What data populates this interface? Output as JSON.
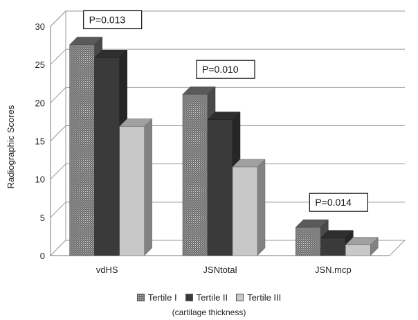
{
  "chart_data": {
    "type": "bar",
    "title": "",
    "xlabel": "",
    "ylabel": "Radiographic Scores",
    "ylim": [
      0,
      30
    ],
    "yticks": [
      0,
      5,
      10,
      15,
      20,
      25,
      30
    ],
    "grid": true,
    "legend_position": "bottom",
    "categories": [
      "vdHS",
      "JSNtotal",
      "JSN.mcp"
    ],
    "series": [
      {
        "name": "Tertile I",
        "values": [
          27.6,
          21.1,
          3.7
        ],
        "color": "#707070",
        "pattern": "dots"
      },
      {
        "name": "Tertile II",
        "values": [
          25.9,
          17.8,
          2.3
        ],
        "color": "#3a3a3a",
        "pattern": "solid"
      },
      {
        "name": "Tertile III",
        "values": [
          16.9,
          11.6,
          1.4
        ],
        "color": "#c8c8c8",
        "pattern": "solid"
      }
    ],
    "annotations": [
      {
        "text": "P=0.013",
        "category": "vdHS"
      },
      {
        "text": "P=0.010",
        "category": "JSNtotal"
      },
      {
        "text": "P=0.014",
        "category": "JSN.mcp"
      }
    ],
    "legend_note": "(cartilage thickness)"
  }
}
